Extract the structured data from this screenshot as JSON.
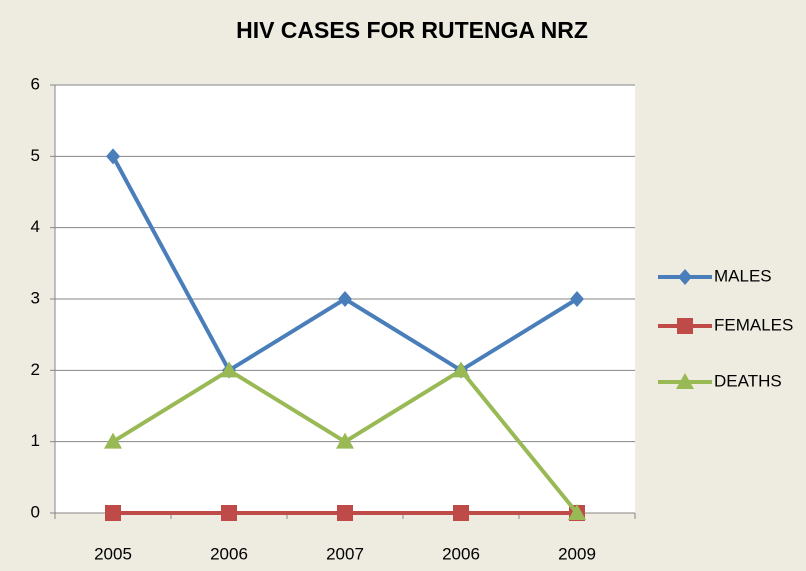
{
  "chart_data": {
    "type": "line",
    "title": "HIV CASES FOR RUTENGA NRZ",
    "categories": [
      "2005",
      "2006",
      "2007",
      "2006",
      "2009"
    ],
    "series": [
      {
        "name": "MALES",
        "color": "#4a7ebb",
        "marker": "diamond",
        "values": [
          5,
          2,
          3,
          2,
          3
        ]
      },
      {
        "name": "FEMALES",
        "color": "#be4b48",
        "marker": "square",
        "values": [
          0,
          0,
          0,
          0,
          0
        ]
      },
      {
        "name": "DEATHS",
        "color": "#98b954",
        "marker": "triangle",
        "values": [
          1,
          2,
          1,
          2,
          0
        ]
      }
    ],
    "ylim": [
      0,
      6
    ],
    "yticks": [
      0,
      1,
      2,
      3,
      4,
      5,
      6
    ],
    "grid": true,
    "legend": "right"
  }
}
